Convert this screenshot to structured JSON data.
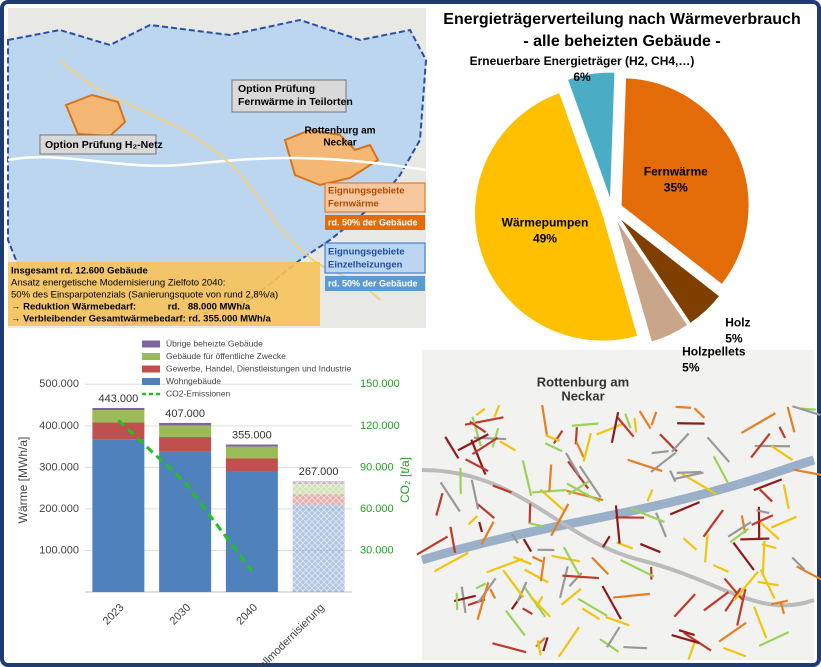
{
  "chart_data": [
    {
      "type": "pie",
      "title": "Energieträgerverteilung nach Wärmeverbrauch",
      "subtitle": "- alle beheizten Gebäude -",
      "categories": [
        "Fernwärme",
        "Holz",
        "Holzpellets",
        "Wärmepumpen",
        "Erneuerbare Energieträger (H2, CH4,…)"
      ],
      "values": [
        35,
        5,
        5,
        49,
        6
      ],
      "value_labels": [
        "35%",
        "5%",
        "5%",
        "49%",
        "6%"
      ],
      "colors": [
        "#e36c09",
        "#7f3f00",
        "#c9a58a",
        "#ffc000",
        "#4bacc6"
      ]
    },
    {
      "type": "bar",
      "stacked": true,
      "categories": [
        "2023",
        "2030",
        "2040",
        "Vollmodernisierung"
      ],
      "series": [
        {
          "name": "Wohngebäude",
          "color": "#4f81bd",
          "values": [
            368000,
            338000,
            290000,
            210000
          ]
        },
        {
          "name": "Gewerbe, Handel, Dienstleistungen und Industrie",
          "color": "#c0504d",
          "values": [
            40000,
            35000,
            32000,
            25000
          ]
        },
        {
          "name": "Gebäude für öffentliche Zwecke",
          "color": "#9bbb59",
          "values": [
            30000,
            28000,
            28000,
            25000
          ]
        },
        {
          "name": "Übrige beheizte Gebäude",
          "color": "#8064a2",
          "values": [
            5000,
            6000,
            5000,
            7000
          ]
        },
        {
          "name": "CO2-Emissionen",
          "type": "line",
          "axis": "y2",
          "color": "#22c022",
          "dashed": true,
          "values": [
            124000,
            79000,
            15000,
            null
          ]
        }
      ],
      "totals": [
        443000,
        407000,
        355000,
        267000
      ],
      "value_labels": [
        "443.000",
        "407.000",
        "355.000",
        "267.000"
      ],
      "ylabel": "Wärme [MWh/a]",
      "y2label": "CO₂ [t/a]",
      "ylim": [
        0,
        520000
      ],
      "yticks": [
        {
          "value": 100000,
          "label": "100.000"
        },
        {
          "value": 200000,
          "label": "200.000"
        },
        {
          "value": 300000,
          "label": "300.000"
        },
        {
          "value": 400000,
          "label": "400.000"
        },
        {
          "value": 500000,
          "label": "500.000"
        }
      ],
      "y2lim": [
        0,
        156000
      ],
      "y2ticks": [
        {
          "value": 30000,
          "label": "30.000"
        },
        {
          "value": 60000,
          "label": "60.000"
        },
        {
          "value": 90000,
          "label": "90.000"
        },
        {
          "value": 120000,
          "label": "120.000"
        },
        {
          "value": 150000,
          "label": "150.000"
        }
      ],
      "grid": true
    }
  ],
  "overview_map": {
    "fernwaerme_option": [
      "Option Prüfung",
      "Fernwärme in Teilorten"
    ],
    "h2_option": "Option Prüfung H₂-Netz",
    "town": [
      "Rottenburg am",
      "Neckar"
    ],
    "legend": [
      {
        "title": [
          "Eignungsgebiete",
          "Fernwärme"
        ],
        "share": "rd. 50% der Gebäude"
      },
      {
        "title": [
          "Eignungsgebiete",
          "Einzelheizungen"
        ],
        "share": "rd. 50% der Gebäude"
      }
    ],
    "summary": [
      "Insgesamt rd. 12.600 Gebäude",
      "Ansatz energetische Modernisierung Zielfoto 2040:",
      "50% des Einsparpotenzials  (Sanierungsquote  von rund 2,8%/a)",
      "→ Reduktion Wärmebedarf:            rd.   88.000 MWh/a",
      "→ Verbleibender Gesamtwärmebedarf: rd. 355.000 MWh/a"
    ]
  },
  "street_map": {
    "town": [
      "Rottenburg am",
      "Neckar"
    ]
  }
}
